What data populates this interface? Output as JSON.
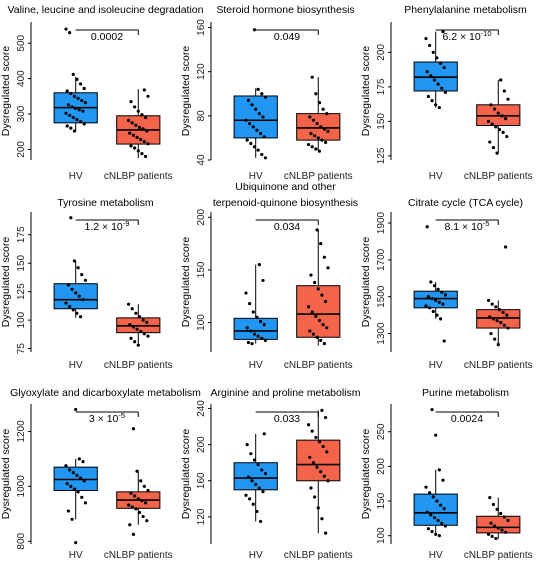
{
  "colors": {
    "hv": "#2196f3",
    "patients": "#f4644a",
    "point": "#000000",
    "frame": "#000000"
  },
  "chart_data": [
    {
      "type": "box",
      "title": [
        "Valine, leucine and isoleucine degradation"
      ],
      "ylabel": "Dysregulated score",
      "ylim": [
        170,
        560
      ],
      "yticks": [
        200,
        300,
        400,
        500
      ],
      "categories": [
        "HV",
        "cNLBP patients"
      ],
      "pvalue": "0.0002",
      "series": [
        {
          "name": "HV",
          "min": 250,
          "q1": 275,
          "median": 318,
          "q3": 360,
          "max": 405,
          "points": [
            540,
            530,
            412,
            398,
            385,
            372,
            365,
            358,
            350,
            344,
            338,
            332,
            326,
            320,
            316,
            312,
            308,
            302,
            296,
            290,
            284,
            278,
            272,
            266,
            260,
            252
          ]
        },
        {
          "name": "cNLBP patients",
          "min": 175,
          "q1": 215,
          "median": 255,
          "q3": 295,
          "max": 370,
          "points": [
            368,
            350,
            335,
            320,
            308,
            298,
            290,
            282,
            275,
            268,
            262,
            258,
            252,
            246,
            240,
            234,
            228,
            222,
            216,
            210,
            204,
            196,
            188,
            180
          ]
        }
      ]
    },
    {
      "type": "box",
      "title": [
        "Steroid hormone biosynthesis"
      ],
      "ylabel": "Dysregulated score",
      "ylim": [
        40,
        165
      ],
      "yticks": [
        40,
        80,
        120,
        160
      ],
      "categories": [
        "HV",
        "cNLBP patients"
      ],
      "pvalue": "0.049",
      "series": [
        {
          "name": "HV",
          "min": 42,
          "q1": 60,
          "median": 76,
          "q3": 98,
          "max": 105,
          "points": [
            158,
            104,
            100,
            97,
            94,
            90,
            86,
            82,
            79,
            76,
            73,
            70,
            67,
            64,
            61,
            58,
            55,
            52,
            49,
            45,
            42
          ]
        },
        {
          "name": "cNLBP patients",
          "min": 48,
          "q1": 58,
          "median": 69,
          "q3": 82,
          "max": 115,
          "points": [
            115,
            100,
            92,
            86,
            82,
            79,
            76,
            73,
            70,
            68,
            66,
            64,
            62,
            60,
            58,
            56,
            54,
            52,
            50,
            48
          ]
        }
      ]
    },
    {
      "type": "box",
      "title": [
        "Phenylalanine metabolism"
      ],
      "ylabel": "Dysregulated score",
      "ylim": [
        122,
        222
      ],
      "yticks": [
        125,
        150,
        175,
        200
      ],
      "categories": [
        "HV",
        "cNLBP patients"
      ],
      "pvalue": "6.2 × 10",
      "pvalue_exp": "-10",
      "series": [
        {
          "name": "HV",
          "min": 160,
          "q1": 172,
          "median": 182,
          "q3": 193,
          "max": 215,
          "points": [
            215,
            210,
            205,
            200,
            196,
            192,
            189,
            186,
            183,
            180,
            177,
            174,
            171,
            168,
            165,
            162,
            160
          ]
        },
        {
          "name": "cNLBP patients",
          "min": 127,
          "q1": 147,
          "median": 154,
          "q3": 162,
          "max": 180,
          "points": [
            180,
            172,
            166,
            162,
            159,
            156,
            154,
            152,
            150,
            148,
            146,
            144,
            142,
            139,
            135,
            131,
            127
          ]
        }
      ]
    },
    {
      "type": "box",
      "title": [
        "Tyrosine metabolism"
      ],
      "ylabel": "Dysregulated score",
      "ylim": [
        72,
        195
      ],
      "yticks": [
        75,
        100,
        125,
        150,
        175
      ],
      "categories": [
        "HV",
        "cNLBP patients"
      ],
      "pvalue": "1.2 × 10",
      "pvalue_exp": "-9",
      "series": [
        {
          "name": "HV",
          "min": 102,
          "q1": 110,
          "median": 118,
          "q3": 132,
          "max": 152,
          "points": [
            190,
            152,
            146,
            140,
            135,
            131,
            127,
            124,
            121,
            118,
            115,
            112,
            109,
            106,
            103
          ]
        },
        {
          "name": "cNLBP patients",
          "min": 78,
          "q1": 89,
          "median": 95,
          "q3": 102,
          "max": 114,
          "points": [
            114,
            110,
            106,
            103,
            100,
            98,
            96,
            94,
            92,
            90,
            88,
            86,
            84,
            81,
            78
          ]
        }
      ]
    },
    {
      "type": "box",
      "title": [
        "Ubiquinone and other",
        "terpenoid-quinone biosynthesis"
      ],
      "ylabel": "Dysregulated score",
      "ylim": [
        72,
        205
      ],
      "yticks": [
        100,
        150,
        200
      ],
      "categories": [
        "HV",
        "cNLBP patients"
      ],
      "pvalue": "0.034",
      "series": [
        {
          "name": "HV",
          "min": 80,
          "q1": 84,
          "median": 92,
          "q3": 104,
          "max": 155,
          "points": [
            155,
            140,
            128,
            118,
            110,
            105,
            101,
            98,
            95,
            92,
            89,
            87,
            85,
            83,
            81,
            80
          ]
        },
        {
          "name": "cNLBP patients",
          "min": 78,
          "q1": 86,
          "median": 108,
          "q3": 135,
          "max": 188,
          "points": [
            188,
            175,
            162,
            152,
            145,
            138,
            132,
            126,
            120,
            115,
            110,
            106,
            102,
            98,
            95,
            92,
            89,
            86,
            83,
            80
          ]
        }
      ]
    },
    {
      "type": "box",
      "title": [
        "Citrate cycle (TCA cycle)"
      ],
      "ylabel": "Dysregulated score",
      "ylim": [
        1200,
        1960
      ],
      "yticks": [
        1300,
        1500,
        1700,
        1900
      ],
      "categories": [
        "HV",
        "cNLBP patients"
      ],
      "pvalue": "8.1 × 10",
      "pvalue_exp": "-5",
      "series": [
        {
          "name": "HV",
          "min": 1380,
          "q1": 1440,
          "median": 1490,
          "q3": 1530,
          "max": 1580,
          "points": [
            1880,
            1580,
            1560,
            1540,
            1525,
            1510,
            1500,
            1490,
            1480,
            1470,
            1460,
            1450,
            1440,
            1420,
            1400,
            1380,
            1260
          ]
        },
        {
          "name": "cNLBP patients",
          "min": 1230,
          "q1": 1330,
          "median": 1385,
          "q3": 1430,
          "max": 1480,
          "points": [
            1770,
            1480,
            1460,
            1445,
            1430,
            1415,
            1400,
            1390,
            1380,
            1370,
            1360,
            1345,
            1330,
            1300,
            1270,
            1240
          ]
        }
      ]
    },
    {
      "type": "box",
      "title": [
        "Glyoxylate and dicarboxylate metabolism"
      ],
      "ylabel": "Dysregulated score",
      "ylim": [
        790,
        1300
      ],
      "yticks": [
        800,
        1000,
        1200
      ],
      "categories": [
        "HV",
        "cNLBP patients"
      ],
      "pvalue": "3 × 10",
      "pvalue_exp": "-5",
      "series": [
        {
          "name": "HV",
          "min": 880,
          "q1": 985,
          "median": 1025,
          "q3": 1070,
          "max": 1100,
          "points": [
            1280,
            1100,
            1090,
            1075,
            1060,
            1050,
            1040,
            1030,
            1020,
            1010,
            1000,
            990,
            980,
            960,
            940,
            910,
            880,
            795
          ]
        },
        {
          "name": "cNLBP patients",
          "min": 860,
          "q1": 920,
          "median": 950,
          "q3": 980,
          "max": 1055,
          "points": [
            1210,
            1055,
            1020,
            1000,
            985,
            975,
            965,
            955,
            948,
            940,
            932,
            925,
            918,
            905,
            890,
            875,
            860,
            825
          ]
        }
      ]
    },
    {
      "type": "box",
      "title": [
        "Arginine and proline metabolism"
      ],
      "ylabel": "Dysregulated score",
      "ylim": [
        90,
        245
      ],
      "yticks": [
        120,
        160,
        200,
        240
      ],
      "categories": [
        "HV",
        "cNLBP patients"
      ],
      "pvalue": "0.033",
      "series": [
        {
          "name": "HV",
          "min": 115,
          "q1": 150,
          "median": 163,
          "q3": 180,
          "max": 212,
          "points": [
            212,
            200,
            190,
            183,
            178,
            172,
            168,
            164,
            160,
            156,
            152,
            148,
            144,
            140,
            134,
            126,
            115
          ]
        },
        {
          "name": "cNLBP patients",
          "min": 102,
          "q1": 160,
          "median": 178,
          "q3": 205,
          "max": 238,
          "points": [
            238,
            230,
            222,
            215,
            208,
            203,
            198,
            192,
            186,
            180,
            175,
            170,
            165,
            160,
            152,
            142,
            130,
            118,
            102
          ]
        }
      ]
    },
    {
      "type": "box",
      "title": [
        "Purine metabolism"
      ],
      "ylabel": "Dysregulated score",
      "ylim": [
        88,
        290
      ],
      "yticks": [
        100,
        150,
        200,
        250
      ],
      "categories": [
        "HV",
        "cNLBP patients"
      ],
      "pvalue": "0.0024",
      "series": [
        {
          "name": "HV",
          "min": 100,
          "q1": 115,
          "median": 133,
          "q3": 160,
          "max": 195,
          "points": [
            282,
            245,
            195,
            180,
            170,
            162,
            156,
            150,
            144,
            139,
            134,
            130,
            126,
            122,
            118,
            114,
            110,
            106,
            102,
            100
          ]
        },
        {
          "name": "cNLBP patients",
          "min": 95,
          "q1": 104,
          "median": 112,
          "q3": 128,
          "max": 155,
          "points": [
            155,
            145,
            138,
            132,
            127,
            122,
            118,
            114,
            111,
            108,
            105,
            102,
            99,
            96
          ]
        }
      ]
    }
  ]
}
